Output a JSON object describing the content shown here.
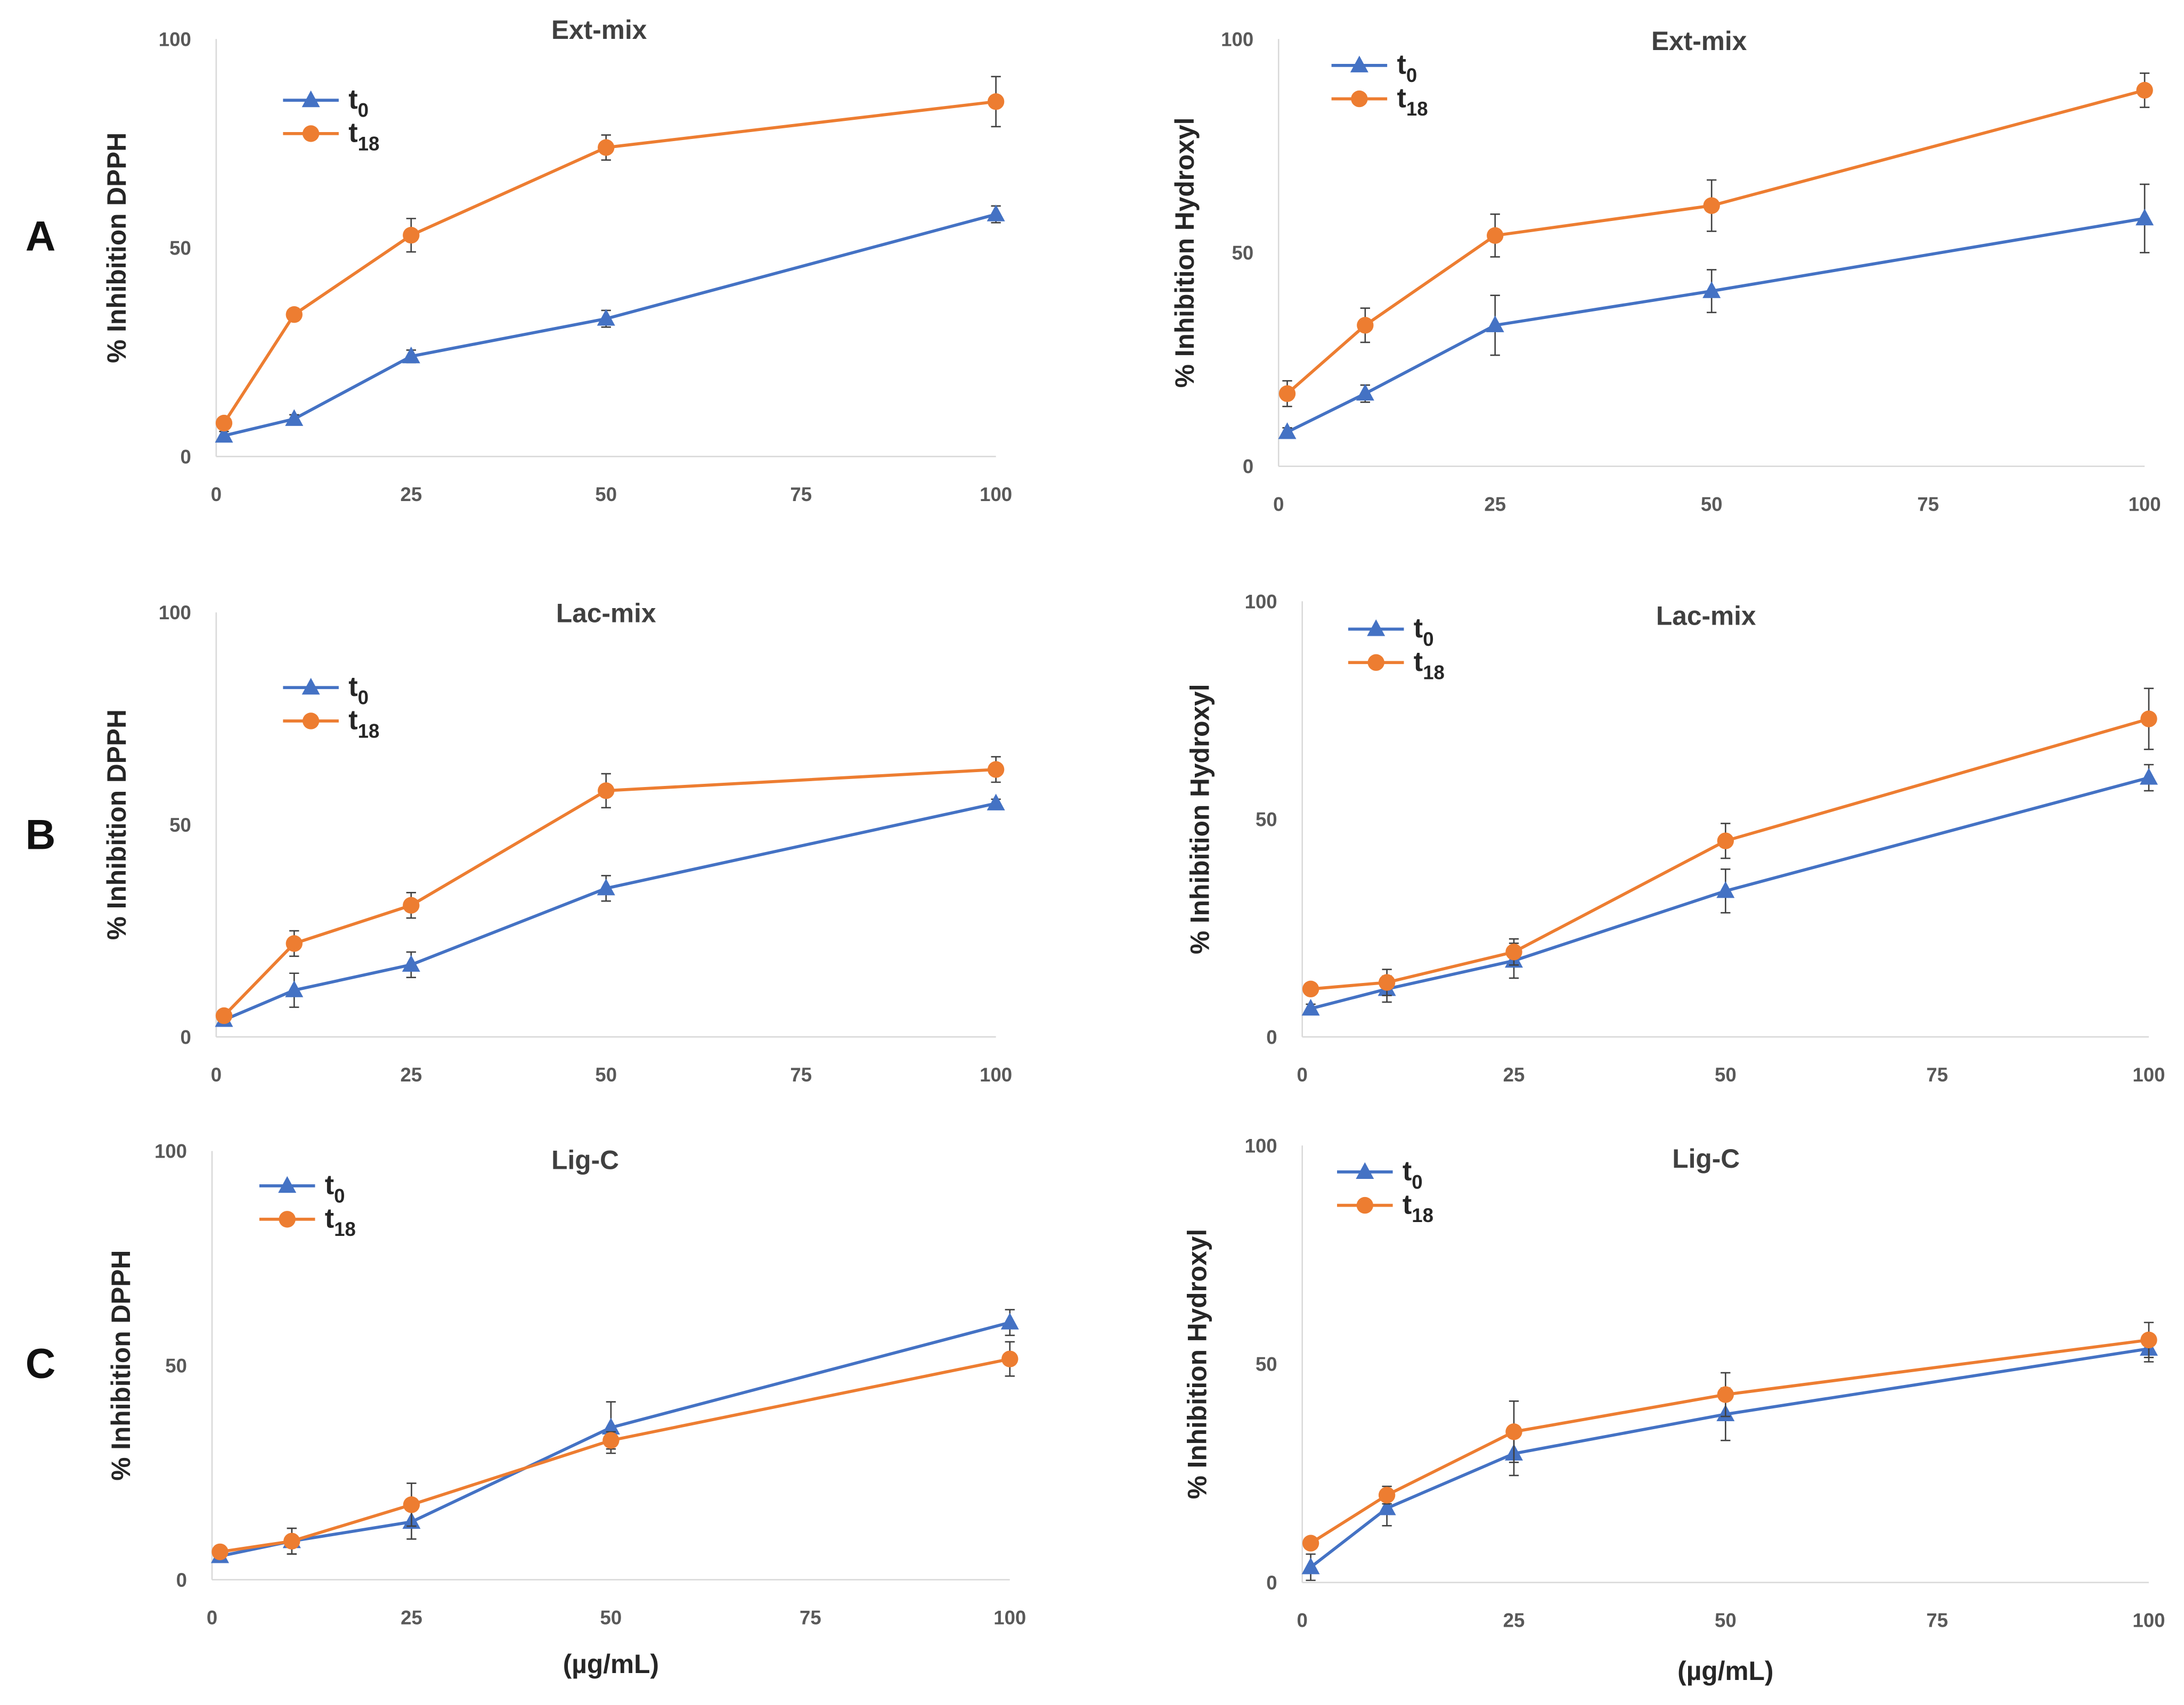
{
  "colors": {
    "t0": "#4472C4",
    "t18": "#ED7D31",
    "axis": "#D9D9D9",
    "error": "#404040"
  },
  "chart_data": [
    {
      "panel": "A",
      "type": "line",
      "title": "Ext-mix",
      "ylabel": "% Inhibition DPPH",
      "xlabel": "",
      "xlim": [
        0,
        100
      ],
      "ylim": [
        0,
        100
      ],
      "xticks": [
        "0",
        "25",
        "50",
        "75",
        "100"
      ],
      "yticks": [
        "0",
        "50",
        "100"
      ],
      "legend": "top-left",
      "x": [
        1,
        10,
        25,
        50,
        100
      ],
      "series": [
        {
          "name": "t0",
          "sub": "0",
          "marker": "triangle",
          "values": [
            5,
            9,
            24,
            33,
            58
          ],
          "errors": [
            1,
            1,
            1.5,
            2,
            2
          ]
        },
        {
          "name": "t18",
          "sub": "18",
          "marker": "circle",
          "values": [
            8,
            34,
            53,
            74,
            85
          ],
          "errors": [
            1,
            1.5,
            4,
            3,
            6
          ]
        }
      ]
    },
    {
      "panel": "",
      "type": "line",
      "title": "Ext-mix",
      "ylabel": "% Inhibition Hydroxyl",
      "xlabel": "",
      "xlim": [
        0,
        100
      ],
      "ylim": [
        0,
        100
      ],
      "xticks": [
        "0",
        "25",
        "50",
        "75",
        "100"
      ],
      "yticks": [
        "0",
        "50",
        "100"
      ],
      "legend": "top-left",
      "x": [
        1,
        10,
        25,
        50,
        100
      ],
      "series": [
        {
          "name": "t0",
          "sub": "0",
          "marker": "triangle",
          "values": [
            8,
            17,
            33,
            41,
            58
          ],
          "errors": [
            1,
            2,
            7,
            5,
            8
          ]
        },
        {
          "name": "t18",
          "sub": "18",
          "marker": "circle",
          "values": [
            17,
            33,
            54,
            61,
            88
          ],
          "errors": [
            3,
            4,
            5,
            6,
            4
          ]
        }
      ]
    },
    {
      "panel": "B",
      "type": "line",
      "title": "Lac-mix",
      "ylabel": "% Inhibition DPPH",
      "xlabel": "",
      "xlim": [
        0,
        100
      ],
      "ylim": [
        0,
        100
      ],
      "xticks": [
        "0",
        "25",
        "50",
        "75",
        "100"
      ],
      "yticks": [
        "0",
        "50",
        "100"
      ],
      "legend": "top-left",
      "x": [
        1,
        10,
        25,
        50,
        100
      ],
      "series": [
        {
          "name": "t0",
          "sub": "0",
          "marker": "triangle",
          "values": [
            4,
            11,
            17,
            35,
            55
          ],
          "errors": [
            1,
            4,
            3,
            3,
            1
          ]
        },
        {
          "name": "t18",
          "sub": "18",
          "marker": "circle",
          "values": [
            5,
            22,
            31,
            58,
            63
          ],
          "errors": [
            1,
            3,
            3,
            4,
            3
          ]
        }
      ]
    },
    {
      "panel": "",
      "type": "line",
      "title": "Lac-mix",
      "ylabel": "% Inhibition Hydroxyl",
      "xlabel": "",
      "xlim": [
        0,
        100
      ],
      "ylim": [
        0,
        100
      ],
      "xticks": [
        "0",
        "25",
        "50",
        "75",
        "100"
      ],
      "yticks": [
        "0",
        "50",
        "100"
      ],
      "legend": "top-left",
      "x": [
        1,
        10,
        25,
        50,
        100
      ],
      "series": [
        {
          "name": "t0",
          "sub": "0",
          "marker": "triangle",
          "values": [
            6.5,
            11,
            17.5,
            33.5,
            59.5
          ],
          "errors": [
            1,
            3,
            4,
            5,
            3
          ]
        },
        {
          "name": "t18",
          "sub": "18",
          "marker": "circle",
          "values": [
            11,
            12.5,
            19.5,
            45,
            73
          ],
          "errors": [
            1,
            3,
            3,
            4,
            7
          ]
        }
      ]
    },
    {
      "panel": "C",
      "type": "line",
      "title": "Lig-C",
      "ylabel": "% Inhibition DPPH",
      "xlabel": "(µg/mL)",
      "xlim": [
        0,
        100
      ],
      "ylim": [
        0,
        100
      ],
      "xticks": [
        "0",
        "25",
        "50",
        "75",
        "100"
      ],
      "yticks": [
        "0",
        "50",
        "100"
      ],
      "legend": "top-left",
      "x": [
        1,
        10,
        25,
        50,
        100
      ],
      "series": [
        {
          "name": "t0",
          "sub": "0",
          "marker": "triangle",
          "values": [
            5.5,
            9,
            13.5,
            35.5,
            60
          ],
          "errors": [
            1,
            3,
            4,
            6,
            3
          ]
        },
        {
          "name": "t18",
          "sub": "18",
          "marker": "circle",
          "values": [
            6.5,
            9,
            17.5,
            32.5,
            51.5
          ],
          "errors": [
            1,
            3,
            5,
            2,
            4
          ]
        }
      ]
    },
    {
      "panel": "",
      "type": "line",
      "title": "Lig-C",
      "ylabel": "% Inhibition Hydroxyl",
      "xlabel": "(µg/mL)",
      "xlim": [
        0,
        100
      ],
      "ylim": [
        0,
        100
      ],
      "xticks": [
        "0",
        "25",
        "50",
        "75",
        "100"
      ],
      "yticks": [
        "0",
        "50",
        "100"
      ],
      "legend": "top-left",
      "x": [
        1,
        10,
        25,
        50,
        100
      ],
      "series": [
        {
          "name": "t0",
          "sub": "0",
          "marker": "triangle",
          "values": [
            3.5,
            17,
            29.5,
            38.5,
            53.5
          ],
          "errors": [
            3,
            4,
            5,
            6,
            3
          ]
        },
        {
          "name": "t18",
          "sub": "18",
          "marker": "circle",
          "values": [
            9,
            20,
            34.5,
            43,
            55.5
          ],
          "errors": [
            1,
            2,
            7,
            5,
            4
          ]
        }
      ]
    }
  ]
}
